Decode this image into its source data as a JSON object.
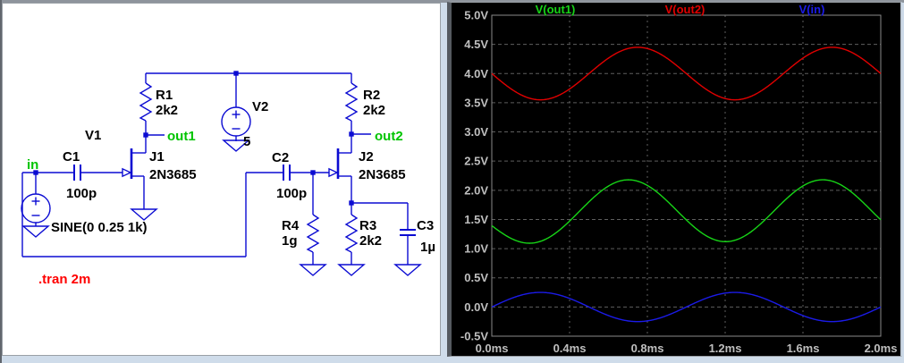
{
  "window": {
    "background": "#cfdcea",
    "panels": [
      "schematic",
      "waveform"
    ]
  },
  "schematic": {
    "colors": {
      "background": "#ffffff",
      "wire": "#0b0bd2",
      "label": "#000000",
      "net": "#00c400",
      "directive": "#ff0000"
    },
    "components": {
      "V1": {
        "name": "V1",
        "value": "SINE(0 0.25 1k)"
      },
      "V2": {
        "name": "V2",
        "value": "5"
      },
      "C1": {
        "name": "C1",
        "value": "100p"
      },
      "C2": {
        "name": "C2",
        "value": "100p"
      },
      "C3": {
        "name": "C3",
        "value": "1µ"
      },
      "R1": {
        "name": "R1",
        "value": "2k2"
      },
      "R2": {
        "name": "R2",
        "value": "2k2"
      },
      "R3": {
        "name": "R3",
        "value": "2k2"
      },
      "R4": {
        "name": "R4",
        "value": "1g"
      },
      "J1": {
        "name": "J1",
        "value": "2N3685"
      },
      "J2": {
        "name": "J2",
        "value": "2N3685"
      }
    },
    "net_labels": {
      "in": "in",
      "out1": "out1",
      "out2": "out2"
    },
    "directive": ".tran 2m"
  },
  "chart_data": {
    "type": "line",
    "title": "",
    "background": "#000000",
    "grid": true,
    "legend_position": "top",
    "grid_color": "#5e5e5e",
    "border_color": "#8a8a8a",
    "tick_label_color": "#bfbfbf",
    "x_axis": {
      "unit": "ms",
      "range": [
        0,
        2
      ],
      "ticks": [
        {
          "value": 0.0,
          "label": "0.0ms"
        },
        {
          "value": 0.4,
          "label": "0.4ms"
        },
        {
          "value": 0.8,
          "label": "0.8ms"
        },
        {
          "value": 1.2,
          "label": "1.2ms"
        },
        {
          "value": 1.6,
          "label": "1.6ms"
        },
        {
          "value": 2.0,
          "label": "2.0ms"
        }
      ]
    },
    "y_axis": {
      "unit": "V",
      "range": [
        -0.5,
        5.0
      ],
      "ticks": [
        {
          "value": 5.0,
          "label": "5.0V"
        },
        {
          "value": 4.5,
          "label": "4.5V"
        },
        {
          "value": 4.0,
          "label": "4.0V"
        },
        {
          "value": 3.5,
          "label": "3.5V"
        },
        {
          "value": 3.0,
          "label": "3.0V"
        },
        {
          "value": 2.5,
          "label": "2.5V"
        },
        {
          "value": 2.0,
          "label": "2.0V"
        },
        {
          "value": 1.5,
          "label": "1.5V"
        },
        {
          "value": 1.0,
          "label": "1.0V"
        },
        {
          "value": 0.5,
          "label": "0.5V"
        },
        {
          "value": 0.0,
          "label": "0.0V"
        },
        {
          "value": -0.5,
          "label": "-0.5V"
        }
      ]
    },
    "series": [
      {
        "name": "V(out1)",
        "color": "#17d417",
        "model": {
          "offset": 1.65,
          "amplitude": -0.53,
          "freq_cycles_per_ms": 1,
          "phase_rad": 0.3,
          "startup_amp": -0.1,
          "startup_tau_ms": 0.15
        },
        "samples_t_ms": [
          0,
          0.25,
          0.5,
          0.75,
          1.0,
          1.25,
          1.5,
          1.75,
          2.0
        ],
        "samples_v": [
          1.39,
          1.13,
          1.8,
          2.16,
          1.49,
          1.14,
          1.81,
          2.16,
          1.49
        ]
      },
      {
        "name": "V(out2)",
        "color": "#e00000",
        "model": {
          "offset": 4.0,
          "amplitude": -0.45,
          "freq_cycles_per_ms": 1,
          "phase_rad": 0.0,
          "startup_amp": 0,
          "startup_tau_ms": 1
        },
        "samples_t_ms": [
          0,
          0.25,
          0.5,
          0.75,
          1.0,
          1.25,
          1.5,
          1.75,
          2.0
        ],
        "samples_v": [
          4.0,
          3.55,
          4.0,
          4.45,
          4.0,
          3.55,
          4.0,
          4.45,
          4.0
        ]
      },
      {
        "name": "V(in)",
        "color": "#1b1be8",
        "model": {
          "offset": 0.0,
          "amplitude": 0.25,
          "freq_cycles_per_ms": 1,
          "phase_rad": 0.0,
          "startup_amp": 0,
          "startup_tau_ms": 1
        },
        "samples_t_ms": [
          0,
          0.25,
          0.5,
          0.75,
          1.0,
          1.25,
          1.5,
          1.75,
          2.0
        ],
        "samples_v": [
          0.0,
          0.25,
          0.0,
          -0.25,
          0.0,
          0.25,
          0.0,
          -0.25,
          0.0
        ]
      }
    ]
  }
}
